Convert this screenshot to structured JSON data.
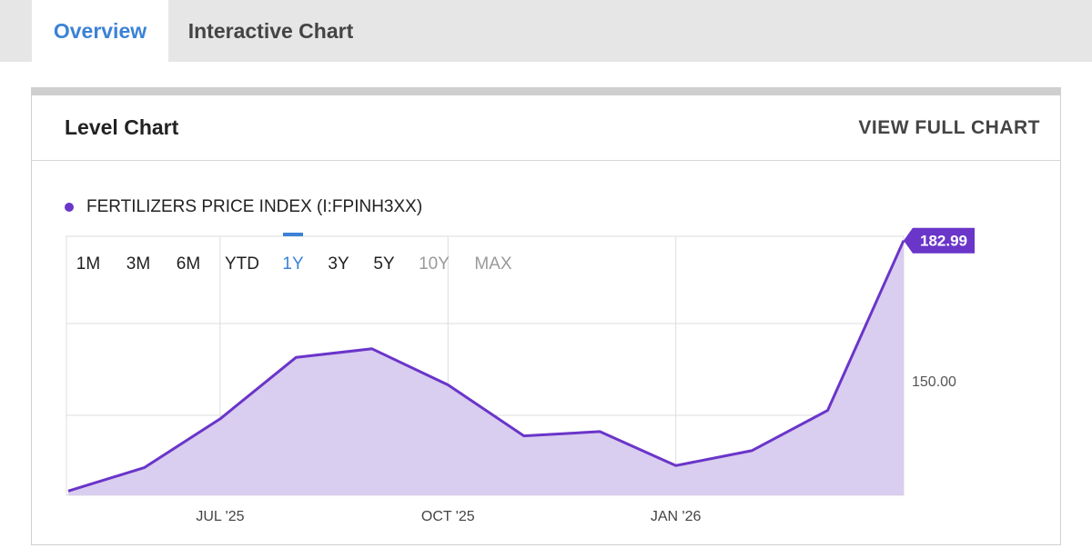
{
  "tabs": [
    {
      "label": "Overview",
      "active": true
    },
    {
      "label": "Interactive Chart",
      "active": false
    }
  ],
  "card": {
    "title": "Level Chart",
    "view_full_label": "VIEW FULL CHART"
  },
  "legend": {
    "label": "FERTILIZERS PRICE INDEX (I:FPINH3XX)",
    "color": "#6a35c9"
  },
  "ranges": [
    {
      "label": "1M",
      "state": "normal"
    },
    {
      "label": "3M",
      "state": "normal"
    },
    {
      "label": "6M",
      "state": "normal"
    },
    {
      "label": "YTD",
      "state": "normal"
    },
    {
      "label": "1Y",
      "state": "active"
    },
    {
      "label": "3Y",
      "state": "normal"
    },
    {
      "label": "5Y",
      "state": "normal"
    },
    {
      "label": "10Y",
      "state": "disabled"
    },
    {
      "label": "MAX",
      "state": "disabled"
    }
  ],
  "colors": {
    "accent": "#3b82d6",
    "series_line": "#6a35c9",
    "series_fill": "#d9cdf0",
    "last_value_badge": "#6a35c9"
  },
  "chart_data": {
    "type": "area",
    "title": "",
    "x": [
      "2025-05",
      "2025-06",
      "2025-07",
      "2025-08",
      "2025-09",
      "2025-10",
      "2025-11",
      "2025-12",
      "2026-01",
      "2026-02",
      "2026-03",
      "2026-04"
    ],
    "series": [
      {
        "name": "FERTILIZERS PRICE INDEX (I:FPINH3XX)",
        "values": [
          124.0,
          129.5,
          141.0,
          155.5,
          157.5,
          149.0,
          137.0,
          138.0,
          130.0,
          133.5,
          143.0,
          182.99
        ]
      }
    ],
    "x_ticks": [
      "JUL '25",
      "OCT '25",
      "JAN '26"
    ],
    "x_tick_positions": [
      "2025-07",
      "2025-10",
      "2026-01"
    ],
    "y_ticks": [
      150
    ],
    "y_tick_labels": [
      "150.00"
    ],
    "ylim": [
      123,
      184
    ],
    "last_value_label": "182.99",
    "grid": true,
    "xlabel": "",
    "ylabel": ""
  }
}
